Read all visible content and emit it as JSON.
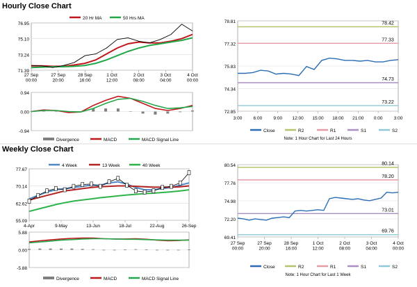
{
  "sections": {
    "hourly_title": "Hourly Close Chart",
    "weekly_title": "Weekly Close Chart"
  },
  "colors": {
    "ma_short": "#c0161b",
    "ma_long": "#22a84a",
    "macd": "#c0161b",
    "signal": "#22a84a",
    "divergence": "#7f7f7f",
    "close": "#2a6db4",
    "r2": "#b3c46a",
    "r1": "#e69aa4",
    "s1": "#a98fc2",
    "s2": "#8fc9d9",
    "w4": "#4e86c4",
    "w13": "#b22222",
    "w40": "#2db34a"
  },
  "chart_data": [
    {
      "id": "hourly-price",
      "type": "line",
      "legend": [
        "20 Hr MA",
        "50 Hrs MA"
      ],
      "yticks": [
        "76.95",
        "75.10",
        "73.24",
        "71.39"
      ],
      "ylim": [
        71.39,
        76.95
      ],
      "xticks": [
        "27 Sep\n00:00",
        "27 Sep\n20:00",
        "28 Sep\n16:00",
        "1 Oct\n12:00",
        "2 Oct\n08:00",
        "3 Oct\n04:00",
        "4 Oct\n00:00"
      ],
      "series": [
        {
          "name": "20 Hr MA",
          "values": [
            71.9,
            71.9,
            71.85,
            71.85,
            72.0,
            72.2,
            72.6,
            73.3,
            74.0,
            74.5,
            74.7,
            74.6,
            74.6,
            74.8,
            75.1,
            75.6
          ]
        },
        {
          "name": "50 Hrs MA",
          "values": [
            71.7,
            71.75,
            71.8,
            71.8,
            71.85,
            71.95,
            72.2,
            72.6,
            73.1,
            73.6,
            74.0,
            74.3,
            74.5,
            74.7,
            74.9,
            75.2
          ]
        },
        {
          "name": "price",
          "values": [
            71.95,
            71.9,
            71.7,
            71.95,
            72.3,
            73.1,
            73.3,
            74.0,
            75.0,
            75.2,
            74.8,
            74.6,
            75.0,
            75.6,
            76.8,
            76.0
          ]
        }
      ]
    },
    {
      "id": "hourly-macd",
      "type": "line",
      "legend": [
        "Divergence",
        "MACD",
        "MACD Signal Line"
      ],
      "yticks": [
        "0.94",
        "0.00",
        "-0.94"
      ],
      "ylim": [
        -0.94,
        0.94
      ],
      "series": [
        {
          "name": "MACD",
          "values": [
            0.0,
            0.08,
            0.05,
            -0.05,
            -0.02,
            0.3,
            0.55,
            0.75,
            0.65,
            0.4,
            0.15,
            0.05,
            0.15,
            0.3
          ]
        },
        {
          "name": "MACD Signal Line",
          "values": [
            0.0,
            0.05,
            0.05,
            0.0,
            -0.02,
            0.15,
            0.4,
            0.6,
            0.65,
            0.5,
            0.3,
            0.15,
            0.18,
            0.25
          ]
        },
        {
          "name": "Divergence",
          "values": [
            0.0,
            0.03,
            0.0,
            -0.05,
            0.0,
            0.15,
            0.15,
            0.15,
            0.0,
            -0.1,
            -0.15,
            -0.1,
            -0.03,
            0.05
          ]
        }
      ]
    },
    {
      "id": "hourly-pivot",
      "type": "line",
      "yticks": [
        "78.81",
        "77.32",
        "75.83",
        "74.34",
        "72.85"
      ],
      "ylim": [
        72.85,
        78.81
      ],
      "xticks": [
        "3:00",
        "6:00",
        "9:00",
        "12:00",
        "15:00",
        "18:00",
        "21:00",
        "0:00",
        "3:00"
      ],
      "levels": [
        {
          "name": "R2",
          "value": 78.42,
          "label": "78.42"
        },
        {
          "name": "R1",
          "value": 77.33,
          "label": "77.33"
        },
        {
          "name": "S1",
          "value": 74.73,
          "label": "74.73"
        },
        {
          "name": "S2",
          "value": 73.22,
          "label": "73.22"
        }
      ],
      "series": [
        {
          "name": "Close",
          "values": [
            75.35,
            75.35,
            75.4,
            75.55,
            75.5,
            75.3,
            75.35,
            75.3,
            75.2,
            75.8,
            75.6,
            76.2,
            76.35,
            76.3,
            76.2,
            76.2,
            76.15,
            76.2,
            76.1,
            76.1,
            76.2,
            76.25
          ]
        }
      ],
      "legend": [
        "Close",
        "R2",
        "R1",
        "S1",
        "S2"
      ],
      "note": "Note: 1 Hour Chart for Last 24 Hours"
    },
    {
      "id": "weekly-price",
      "type": "line",
      "legend": [
        "4 Week",
        "13 Week",
        "40 Week"
      ],
      "yticks": [
        "77.67",
        "70.14",
        "62.62",
        "55.09"
      ],
      "ylim": [
        55.09,
        77.67
      ],
      "xticks": [
        "4-Apr",
        "9-May",
        "13-Jun",
        "18-Jul",
        "22-Aug",
        "26-Sep"
      ],
      "series": [
        {
          "name": "4 Week",
          "values": [
            64.5,
            66.0,
            67.5,
            68.5,
            69.0,
            69.5,
            70.0,
            70.5,
            70.5,
            71.5,
            72.0,
            71.0,
            69.5,
            68.5,
            68.5,
            69.0,
            69.5,
            70.5,
            71.5
          ]
        },
        {
          "name": "13 Week",
          "values": [
            64.0,
            65.0,
            66.0,
            67.0,
            68.0,
            68.5,
            69.0,
            69.5,
            69.8,
            70.0,
            70.2,
            70.2,
            70.0,
            69.8,
            69.6,
            69.6,
            69.6,
            69.8,
            70.2
          ]
        },
        {
          "name": "40 Week",
          "values": [
            59.0,
            60.0,
            61.0,
            62.0,
            62.8,
            63.5,
            64.0,
            64.5,
            65.0,
            65.4,
            65.8,
            66.2,
            66.5,
            66.8,
            67.0,
            67.3,
            67.6,
            68.0,
            68.5
          ]
        },
        {
          "name": "price",
          "values": [
            63.5,
            66.0,
            68.0,
            69.0,
            68.5,
            70.0,
            70.8,
            71.0,
            70.0,
            72.0,
            73.5,
            70.5,
            68.0,
            67.5,
            68.0,
            69.5,
            70.0,
            71.5,
            76.0
          ]
        }
      ]
    },
    {
      "id": "weekly-macd",
      "type": "line",
      "legend": [
        "Divergence",
        "MACD",
        "MACD Signal Line"
      ],
      "yticks": [
        "5.88",
        "0.00",
        "-5.88"
      ],
      "ylim": [
        -5.88,
        5.88
      ],
      "series": [
        {
          "name": "MACD",
          "values": [
            2.6,
            3.0,
            3.3,
            3.6,
            3.8,
            3.9,
            3.9,
            3.7,
            3.6,
            3.6,
            3.7,
            3.5,
            3.2,
            3.0,
            3.1,
            3.3
          ]
        },
        {
          "name": "MACD Signal Line",
          "values": [
            2.3,
            2.6,
            2.9,
            3.2,
            3.4,
            3.6,
            3.7,
            3.7,
            3.6,
            3.5,
            3.5,
            3.4,
            3.3,
            3.2,
            3.2,
            3.2
          ]
        },
        {
          "name": "Divergence",
          "values": [
            0.3,
            0.4,
            0.4,
            0.4,
            0.4,
            0.3,
            0.2,
            0.0,
            0.0,
            0.1,
            0.2,
            0.1,
            -0.1,
            -0.2,
            -0.1,
            0.1
          ]
        }
      ]
    },
    {
      "id": "weekly-pivot",
      "type": "line",
      "yticks": [
        "80.54",
        "77.76",
        "74.98",
        "72.20",
        "69.41"
      ],
      "ylim": [
        69.41,
        80.54
      ],
      "xticks": [
        "27 Sep\n00:00",
        "27 Sep\n20:00",
        "28 Sep\n16:00",
        "1 Oct\n12:00",
        "2 Oct\n08:00",
        "3 Oct\n04:00",
        "4 Oct\n00:00"
      ],
      "levels": [
        {
          "name": "R2",
          "value": 80.14,
          "label": "80.14"
        },
        {
          "name": "R1",
          "value": 78.2,
          "label": "78.20"
        },
        {
          "name": "S1",
          "value": 73.01,
          "label": "73.01"
        },
        {
          "name": "S2",
          "value": 69.76,
          "label": "69.76"
        }
      ],
      "series": [
        {
          "name": "Close",
          "values": [
            72.3,
            72.2,
            72.0,
            72.2,
            72.1,
            72.0,
            72.3,
            72.4,
            72.5,
            72.4,
            73.4,
            73.5,
            73.4,
            73.5,
            73.6,
            73.5,
            75.3,
            75.5,
            75.4,
            75.3,
            75.2,
            75.3,
            75.1,
            75.0,
            75.2,
            75.4,
            76.3,
            76.2,
            76.3
          ]
        }
      ],
      "legend": [
        "Close",
        "R2",
        "R1",
        "S1",
        "S2"
      ],
      "note": "Note: 1 Hour Chart for Last 1 Week"
    }
  ]
}
